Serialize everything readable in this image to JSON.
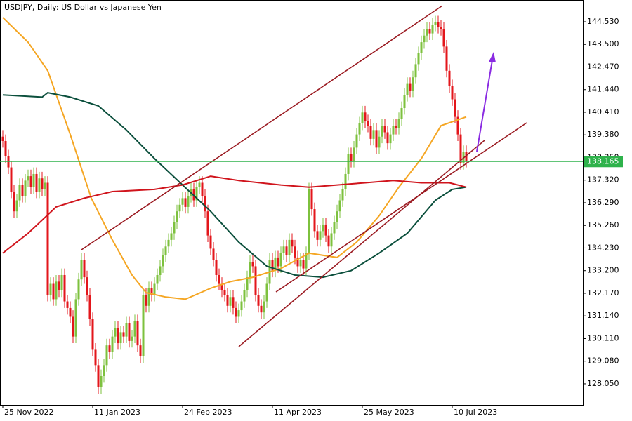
{
  "chart_data": {
    "type": "candlestick",
    "title": "USDJPY, Daily:  US Dollar vs Japanese Yen",
    "ylim": [
      127.09,
      145.52
    ],
    "xlim": [
      -1,
      206.5
    ],
    "yticks": [
      {
        "value": 144.53,
        "label": "144.530"
      },
      {
        "value": 143.5,
        "label": "143.500"
      },
      {
        "value": 142.47,
        "label": "142.470"
      },
      {
        "value": 141.44,
        "label": "141.440"
      },
      {
        "value": 140.41,
        "label": "140.410"
      },
      {
        "value": 139.38,
        "label": "139.380"
      },
      {
        "value": 138.35,
        "label": "138.350"
      },
      {
        "value": 137.32,
        "label": "137.320"
      },
      {
        "value": 136.29,
        "label": "136.290"
      },
      {
        "value": 135.26,
        "label": "135.260"
      },
      {
        "value": 134.23,
        "label": "134.230"
      },
      {
        "value": 133.2,
        "label": "133.200"
      },
      {
        "value": 132.17,
        "label": "132.170"
      },
      {
        "value": 131.14,
        "label": "131.140"
      },
      {
        "value": 130.11,
        "label": "130.110"
      },
      {
        "value": 129.08,
        "label": "129.080"
      },
      {
        "value": 128.05,
        "label": "128.050"
      }
    ],
    "xticks": [
      {
        "value": 0,
        "label": "25 Nov 2022"
      },
      {
        "value": 32,
        "label": "11 Jan 2023"
      },
      {
        "value": 64,
        "label": "24 Feb 2023"
      },
      {
        "value": 96,
        "label": "11 Apr 2023"
      },
      {
        "value": 128,
        "label": "25 May 2023"
      },
      {
        "value": 160,
        "label": "10 Jul 2023"
      }
    ],
    "up_color": "#7dc13e",
    "down_color": "#e3161b",
    "candles": {
      "open": [
        139.3,
        139.1,
        138.4,
        137.9,
        136.8,
        135.9,
        136.4,
        137.1,
        136.6,
        137.3,
        137.5,
        137.0,
        137.6,
        136.8,
        137.4,
        136.9,
        137.2,
        132.1,
        132.6,
        131.9,
        132.7,
        132.3,
        133.0,
        131.8,
        131.5,
        131.1,
        130.2,
        131.9,
        132.8,
        133.7,
        132.9,
        132.1,
        131.0,
        129.6,
        128.9,
        127.9,
        128.4,
        128.9,
        129.8,
        129.5,
        130.2,
        130.6,
        129.9,
        130.4,
        130.2,
        130.8,
        130.0,
        130.2,
        130.9,
        129.8,
        129.3,
        132.1,
        131.6,
        132.4,
        132.1,
        132.6,
        133.0,
        133.4,
        133.9,
        134.3,
        134.6,
        134.9,
        135.4,
        135.9,
        136.2,
        136.5,
        136.1,
        136.6,
        136.9,
        136.4,
        137.0,
        137.2,
        136.6,
        135.9,
        134.8,
        134.2,
        133.7,
        133.0,
        132.6,
        132.3,
        132.1,
        131.6,
        132.0,
        131.5,
        131.1,
        131.4,
        131.8,
        132.3,
        132.9,
        133.6,
        133.4,
        132.1,
        131.6,
        131.3,
        131.8,
        132.6,
        133.7,
        133.2,
        133.8,
        133.4,
        134.0,
        134.3,
        133.9,
        134.6,
        134.3,
        133.8,
        133.4,
        133.7,
        133.3,
        134.0,
        136.9,
        136.0,
        135.0,
        134.6,
        135.0,
        135.3,
        134.8,
        134.3,
        134.9,
        135.4,
        135.9,
        136.4,
        136.9,
        137.6,
        138.5,
        138.2,
        138.8,
        139.4,
        139.9,
        140.4,
        140.0,
        139.8,
        139.2,
        139.6,
        138.8,
        139.3,
        139.8,
        139.5,
        139.0,
        139.4,
        139.8,
        139.7,
        140.1,
        140.6,
        141.2,
        141.7,
        141.4,
        142.0,
        142.6,
        143.1,
        143.6,
        143.9,
        144.2,
        144.0,
        144.4,
        144.5,
        144.3,
        144.2,
        143.4,
        142.3,
        141.6,
        141.0,
        140.2,
        139.4,
        138.1,
        138.6
      ],
      "high": [
        139.6,
        139.4,
        138.7,
        138.2,
        137.1,
        136.7,
        137.4,
        137.4,
        137.6,
        137.8,
        137.8,
        137.9,
        137.9,
        137.7,
        137.7,
        137.5,
        137.5,
        132.9,
        132.9,
        133.0,
        133.0,
        133.3,
        133.3,
        132.1,
        131.8,
        131.4,
        132.2,
        133.1,
        134.0,
        134.0,
        133.2,
        132.4,
        131.3,
        129.9,
        129.2,
        128.7,
        129.2,
        130.1,
        130.1,
        130.5,
        130.9,
        130.9,
        130.7,
        130.7,
        131.1,
        131.1,
        130.5,
        131.2,
        131.2,
        130.1,
        132.4,
        132.4,
        132.7,
        132.7,
        132.9,
        133.3,
        133.7,
        134.2,
        134.6,
        134.9,
        135.2,
        135.7,
        136.2,
        136.5,
        136.8,
        136.8,
        136.9,
        137.2,
        137.2,
        137.3,
        137.5,
        137.5,
        136.9,
        136.2,
        135.1,
        134.5,
        134.0,
        133.3,
        132.9,
        132.6,
        132.4,
        132.3,
        132.3,
        131.8,
        131.7,
        132.1,
        132.6,
        133.2,
        133.9,
        133.9,
        133.7,
        132.4,
        131.9,
        132.1,
        132.9,
        134.0,
        134.0,
        134.1,
        134.1,
        134.3,
        134.6,
        134.6,
        134.9,
        134.9,
        134.6,
        134.1,
        134.0,
        134.0,
        134.3,
        137.2,
        137.2,
        136.3,
        135.3,
        135.3,
        135.6,
        135.6,
        135.1,
        135.2,
        135.7,
        136.2,
        136.7,
        137.2,
        137.9,
        138.8,
        138.8,
        139.1,
        139.7,
        140.2,
        140.7,
        140.7,
        140.3,
        140.1,
        139.9,
        139.9,
        139.6,
        140.1,
        140.1,
        139.8,
        139.7,
        140.1,
        140.1,
        140.4,
        140.9,
        141.5,
        142.0,
        142.0,
        142.3,
        142.9,
        143.4,
        143.9,
        144.2,
        144.5,
        144.5,
        144.7,
        144.8,
        144.8,
        144.6,
        144.5,
        143.7,
        142.6,
        141.9,
        141.3,
        140.5,
        139.7,
        138.9,
        138.9
      ],
      "low": [
        138.8,
        138.1,
        137.6,
        136.5,
        135.6,
        135.6,
        136.1,
        136.3,
        136.3,
        137.0,
        136.7,
        136.7,
        136.5,
        136.5,
        136.6,
        136.6,
        131.8,
        131.8,
        131.6,
        131.6,
        132.0,
        132.0,
        131.5,
        131.2,
        130.8,
        129.9,
        129.9,
        131.6,
        132.5,
        132.6,
        131.8,
        130.7,
        129.3,
        128.6,
        127.6,
        127.6,
        128.1,
        128.6,
        129.2,
        129.2,
        129.9,
        129.6,
        129.6,
        129.9,
        129.9,
        129.7,
        129.7,
        129.9,
        129.5,
        129.0,
        129.0,
        131.3,
        131.3,
        131.8,
        131.8,
        132.3,
        132.7,
        133.1,
        133.6,
        134.0,
        134.3,
        134.6,
        135.1,
        135.6,
        135.9,
        135.8,
        135.8,
        136.3,
        136.1,
        136.1,
        136.7,
        136.3,
        135.6,
        134.5,
        133.9,
        133.4,
        132.7,
        132.3,
        132.0,
        131.8,
        131.3,
        131.3,
        131.2,
        130.8,
        130.8,
        131.1,
        131.5,
        132.0,
        132.6,
        133.1,
        131.8,
        131.3,
        131.0,
        131.0,
        131.5,
        132.3,
        132.9,
        132.9,
        133.1,
        133.1,
        133.7,
        133.6,
        133.6,
        134.0,
        133.5,
        133.1,
        133.1,
        133.0,
        133.0,
        133.7,
        135.7,
        134.7,
        134.3,
        134.3,
        134.7,
        134.5,
        134.0,
        134.0,
        134.6,
        135.1,
        135.6,
        136.1,
        136.6,
        137.3,
        137.9,
        137.9,
        138.5,
        139.1,
        139.6,
        139.7,
        139.5,
        138.9,
        138.9,
        138.5,
        138.5,
        139.0,
        139.2,
        138.7,
        138.7,
        139.1,
        139.4,
        139.4,
        139.8,
        140.3,
        140.9,
        141.1,
        141.1,
        141.7,
        142.3,
        142.8,
        143.3,
        143.6,
        143.7,
        143.7,
        144.1,
        144.0,
        143.9,
        143.1,
        142.0,
        141.3,
        140.7,
        139.9,
        139.1,
        137.8,
        137.8,
        137.9
      ],
      "close": [
        139.1,
        138.4,
        137.9,
        136.8,
        135.9,
        136.4,
        137.1,
        136.6,
        137.3,
        137.5,
        137.0,
        137.6,
        136.8,
        137.4,
        136.9,
        137.2,
        132.1,
        132.6,
        131.9,
        132.7,
        132.3,
        133.0,
        131.8,
        131.5,
        131.1,
        130.2,
        131.9,
        132.8,
        133.7,
        132.9,
        132.1,
        131.0,
        129.6,
        128.9,
        127.9,
        128.4,
        128.9,
        129.8,
        129.5,
        130.2,
        130.6,
        129.9,
        130.4,
        130.2,
        130.8,
        130.0,
        130.2,
        130.9,
        129.8,
        129.3,
        132.1,
        131.6,
        132.4,
        132.1,
        132.6,
        133.0,
        133.4,
        133.9,
        134.3,
        134.6,
        134.9,
        135.4,
        135.9,
        136.2,
        136.5,
        136.1,
        136.6,
        136.9,
        136.4,
        137.0,
        137.2,
        136.6,
        135.9,
        134.8,
        134.2,
        133.7,
        133.0,
        132.6,
        132.3,
        132.1,
        131.6,
        132.0,
        131.5,
        131.1,
        131.4,
        131.8,
        132.3,
        132.9,
        133.6,
        133.4,
        132.1,
        131.6,
        131.3,
        131.8,
        132.6,
        133.7,
        133.2,
        133.8,
        133.4,
        134.0,
        134.3,
        133.9,
        134.6,
        134.3,
        133.8,
        133.4,
        133.7,
        133.3,
        134.0,
        136.9,
        136.0,
        135.0,
        134.6,
        135.0,
        135.3,
        134.8,
        134.3,
        134.9,
        135.4,
        135.9,
        136.4,
        136.9,
        137.6,
        138.5,
        138.2,
        138.8,
        139.4,
        139.9,
        140.4,
        140.0,
        139.8,
        139.2,
        139.6,
        138.8,
        139.3,
        139.8,
        139.5,
        139.0,
        139.4,
        139.8,
        139.7,
        140.1,
        140.6,
        141.2,
        141.7,
        141.4,
        142.0,
        142.6,
        143.1,
        143.6,
        143.9,
        144.2,
        144.0,
        144.4,
        144.5,
        144.3,
        144.2,
        143.4,
        142.3,
        141.6,
        141.0,
        140.2,
        139.4,
        138.1,
        138.6,
        138.2
      ]
    },
    "lines": [
      {
        "color": "#f5a623",
        "x": [
          0,
          9,
          16,
          24,
          31.5,
          39,
          46,
          51,
          58,
          65,
          74,
          81,
          89,
          99,
          109,
          119,
          126,
          134,
          141,
          149,
          156,
          165
        ],
        "values": [
          144.72,
          143.6,
          142.3,
          139.4,
          136.5,
          134.6,
          133.0,
          132.2,
          132.0,
          131.9,
          132.4,
          132.7,
          132.9,
          133.3,
          134.0,
          133.8,
          134.5,
          135.7,
          137.0,
          138.3,
          139.8,
          140.2
        ]
      },
      {
        "color": "#0b4f3c",
        "x": [
          0,
          14,
          16,
          24,
          34,
          44,
          54,
          64,
          74,
          84,
          94,
          104,
          114,
          124,
          134,
          144,
          154,
          160,
          165
        ],
        "values": [
          141.2,
          141.1,
          141.3,
          141.1,
          140.7,
          139.6,
          138.3,
          137.1,
          135.9,
          134.5,
          133.4,
          133.0,
          132.9,
          133.2,
          134.0,
          134.9,
          136.4,
          136.9,
          137.0
        ]
      },
      {
        "color": "#d0141c",
        "x": [
          0,
          9,
          19,
          29,
          39,
          54,
          64,
          74,
          84,
          99,
          109,
          119,
          129,
          139,
          149,
          159,
          165
        ],
        "values": [
          134.0,
          134.9,
          136.1,
          136.5,
          136.8,
          136.9,
          137.1,
          137.5,
          137.3,
          137.1,
          137.0,
          137.1,
          137.2,
          137.3,
          137.2,
          137.2,
          137.0
        ]
      }
    ],
    "price_line": {
      "value": 138.165,
      "label": "138.165",
      "color": "#2eb24b"
    }
  }
}
